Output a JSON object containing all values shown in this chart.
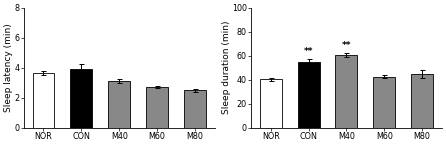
{
  "left_chart": {
    "ylabel": "Sleep latency (min)",
    "categories": [
      "NOR",
      "CON",
      "M40",
      "M60",
      "M80"
    ],
    "values": [
      3.62,
      3.92,
      3.1,
      2.72,
      2.48
    ],
    "errors": [
      0.14,
      0.35,
      0.15,
      0.08,
      0.1
    ],
    "bar_colors": [
      "white",
      "black",
      "#888888",
      "#888888",
      "#888888"
    ],
    "bar_edgecolors": [
      "black",
      "black",
      "black",
      "black",
      "black"
    ],
    "ylim": [
      0,
      8
    ],
    "yticks": [
      0,
      2,
      4,
      6,
      8
    ],
    "annotations": []
  },
  "right_chart": {
    "ylabel": "Sleep duration (min)",
    "categories": [
      "NOR",
      "CON",
      "M40",
      "M60",
      "M80"
    ],
    "values": [
      40.5,
      55.0,
      60.5,
      42.5,
      44.5
    ],
    "errors": [
      1.2,
      2.2,
      1.8,
      1.5,
      3.2
    ],
    "bar_colors": [
      "white",
      "black",
      "#888888",
      "#888888",
      "#888888"
    ],
    "bar_edgecolors": [
      "black",
      "black",
      "black",
      "black",
      "black"
    ],
    "ylim": [
      0,
      100
    ],
    "yticks": [
      0,
      20,
      40,
      60,
      80,
      100
    ],
    "annotations": [
      {
        "bar_index": 1,
        "text": "**"
      },
      {
        "bar_index": 2,
        "text": "**"
      }
    ]
  },
  "bar_width": 0.58,
  "font_size": 6.5,
  "tick_font_size": 5.8,
  "annotation_font_size": 6.5,
  "figure_width": 4.46,
  "figure_height": 1.45,
  "dpi": 100
}
